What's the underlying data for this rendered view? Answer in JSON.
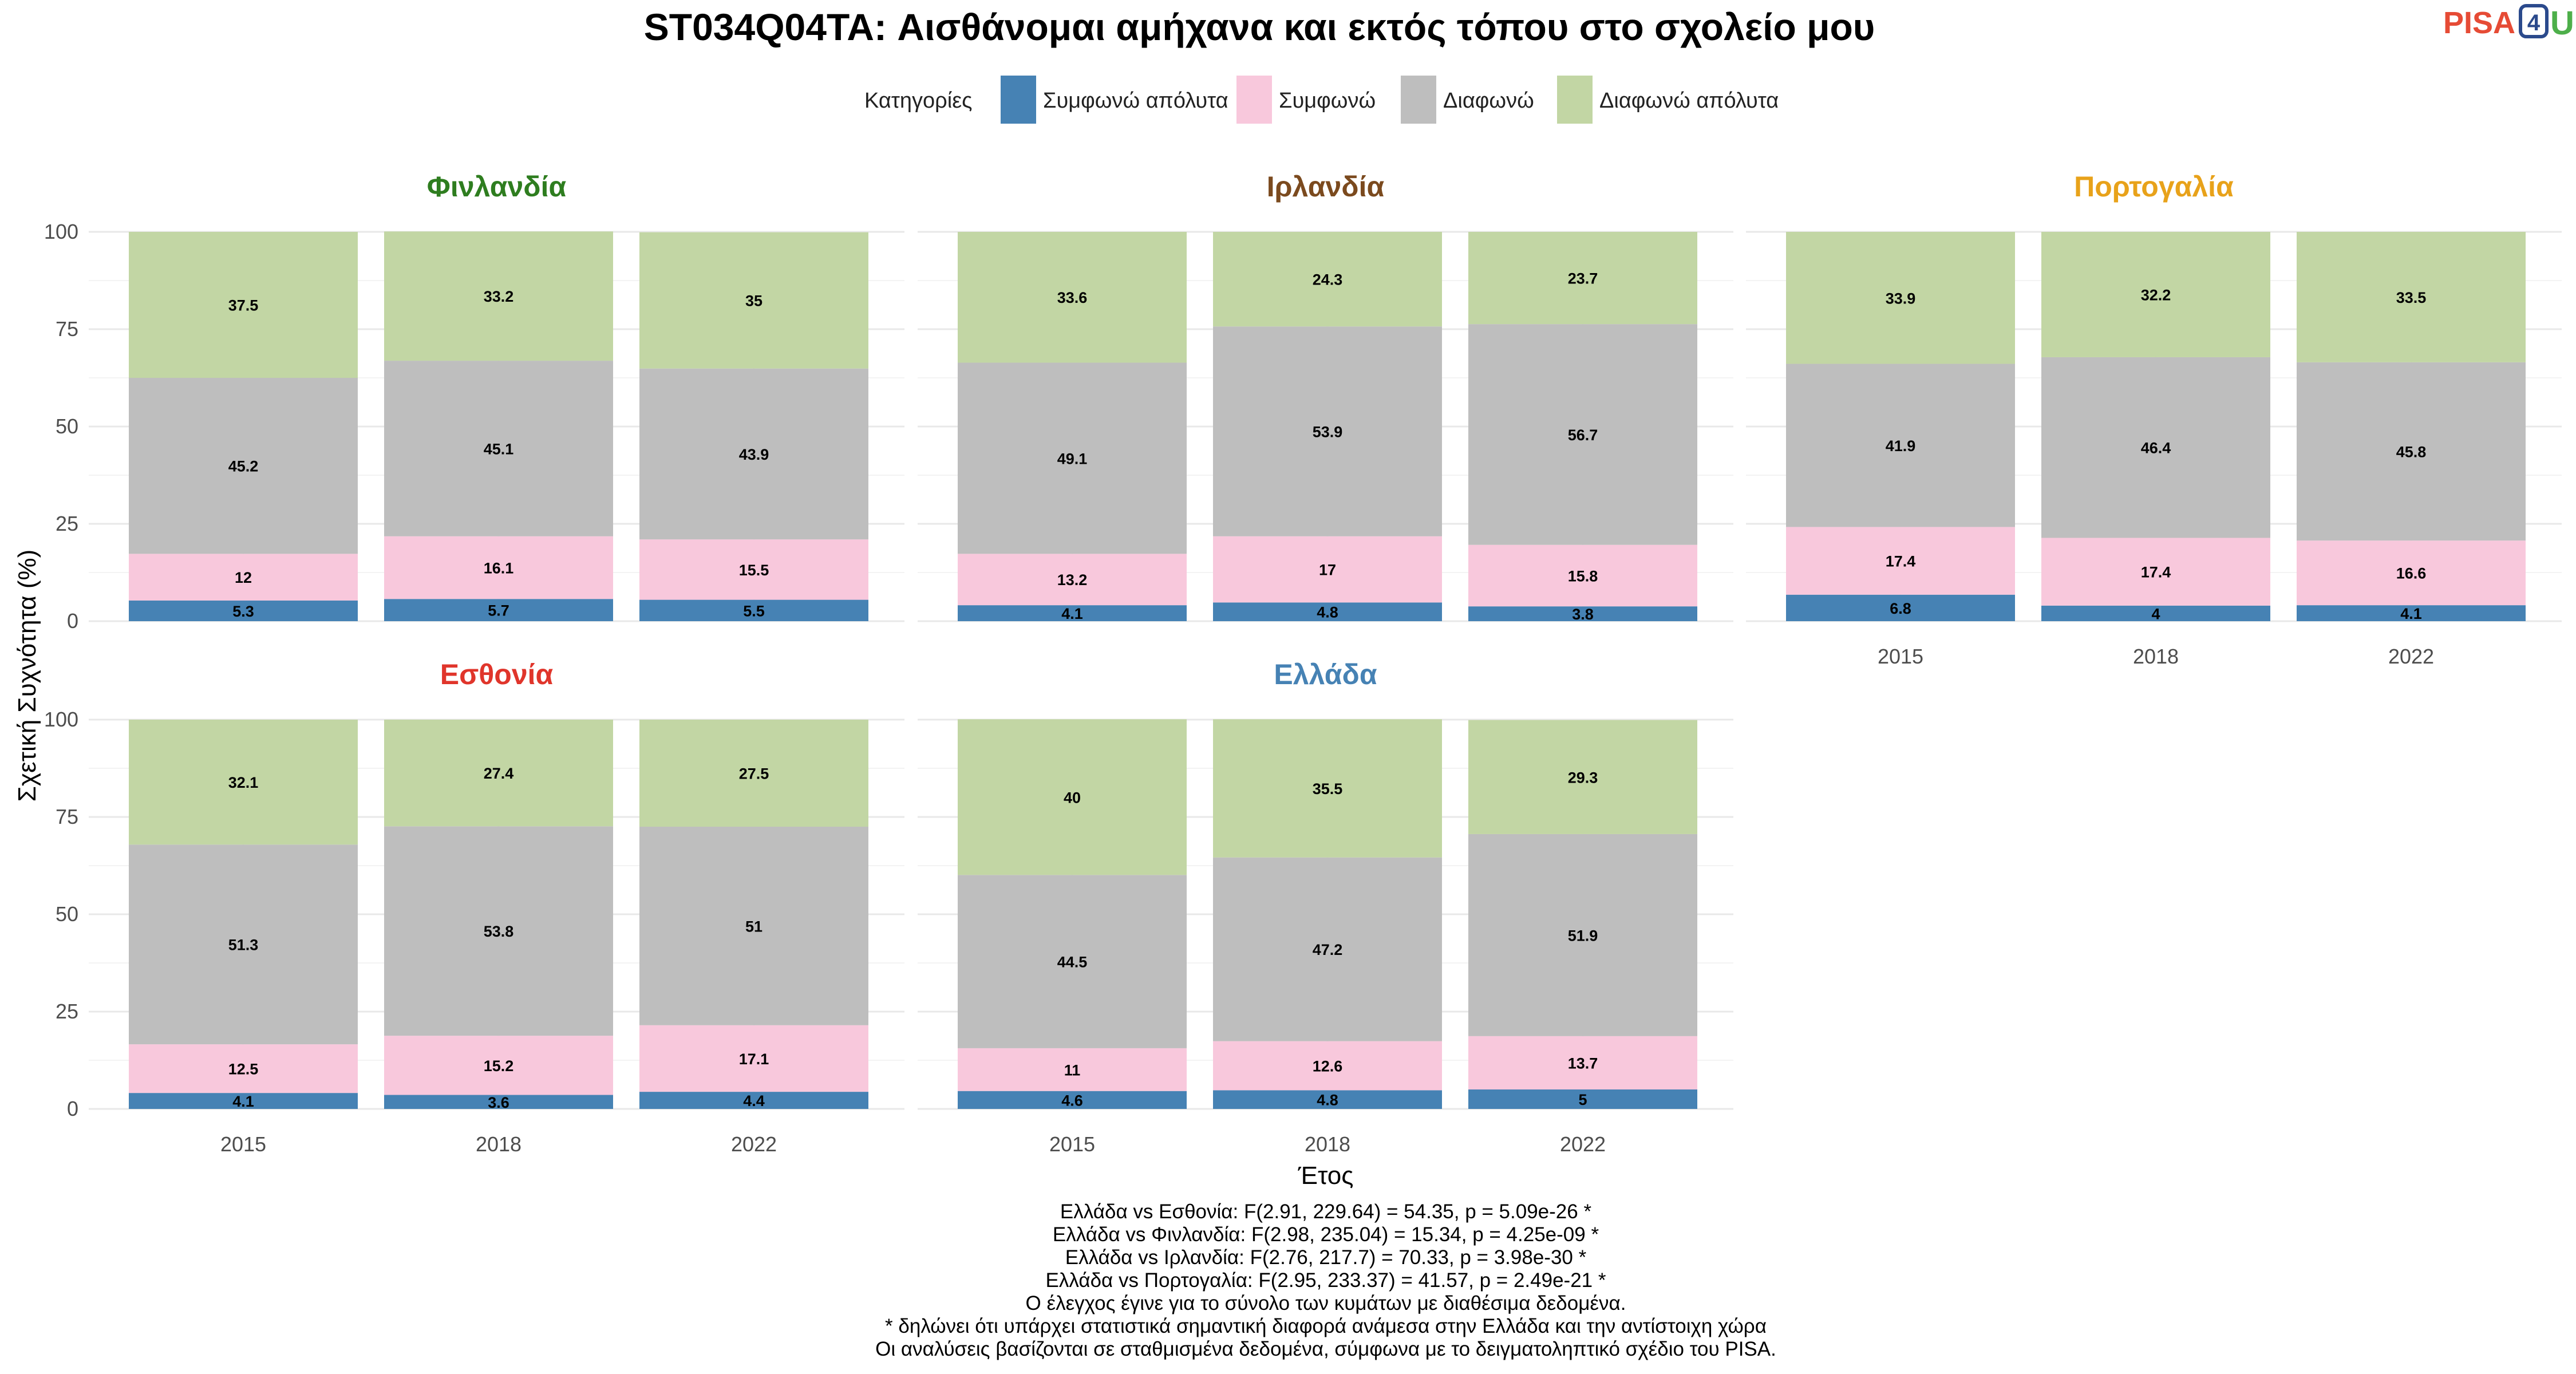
{
  "title": "ST034Q04TA: Αισθάνομαι αμήχανα και εκτός τόπου στο σχολείο μου",
  "logo": {
    "pisa": "PISA",
    "four": "4",
    "u": "U"
  },
  "legend": {
    "title": "Κατηγορίες",
    "items": [
      {
        "label": "Συμφωνώ απόλυτα",
        "color": "#4682b4"
      },
      {
        "label": "Συμφωνώ",
        "color": "#f8c8dc"
      },
      {
        "label": "Διαφωνώ",
        "color": "#bebebe"
      },
      {
        "label": "Διαφωνώ απόλυτα",
        "color": "#c2d6a4"
      }
    ]
  },
  "axes": {
    "ylabel": "Σχετική Συχνότητα (%)",
    "xlabel": "Έτος",
    "yticks": [
      "0",
      "25",
      "50",
      "75",
      "100"
    ]
  },
  "notes": [
    "Ελλάδα vs Εσθονία: F(2.91, 229.64) = 54.35, p = 5.09e-26 *",
    "Ελλάδα vs Φινλανδία: F(2.98, 235.04) = 15.34, p = 4.25e-09 *",
    "Ελλάδα vs Ιρλανδία: F(2.76, 217.7) = 70.33, p = 3.98e-30 *",
    "Ελλάδα vs Πορτογαλία: F(2.95, 233.37) = 41.57, p = 2.49e-21 *",
    "Ο έλεγχος έγινε για το σύνολο των κυμάτων με διαθέσιμα δεδομένα.",
    "* δηλώνει ότι υπάρχει στατιστικά σημαντική διαφορά ανάμεσα στην Ελλάδα και την αντίστοιχη χώρα",
    "Οι αναλύσεις βασίζονται σε σταθμισμένα δεδομένα, σύμφωνα με το δειγματοληπτικό σχέδιο του PISA."
  ],
  "chart_data": {
    "type": "bar",
    "stacked": true,
    "ylim": [
      0,
      100
    ],
    "categories": [
      "2015",
      "2018",
      "2022"
    ],
    "series_names": [
      "Συμφωνώ απόλυτα",
      "Συμφωνώ",
      "Διαφωνώ",
      "Διαφωνώ απόλυτα"
    ],
    "facets": [
      {
        "name": "Φινλανδία",
        "color": "#2e7d1f",
        "values": [
          [
            5.3,
            12,
            45.2,
            37.5
          ],
          [
            5.7,
            16.1,
            45.1,
            33.2
          ],
          [
            5.5,
            15.5,
            43.9,
            35
          ]
        ]
      },
      {
        "name": "Ιρλανδία",
        "color": "#7b4a1e",
        "values": [
          [
            4.1,
            13.2,
            49.1,
            33.6
          ],
          [
            4.8,
            17,
            53.9,
            24.3
          ],
          [
            3.8,
            15.8,
            56.7,
            23.7
          ]
        ]
      },
      {
        "name": "Πορτογαλία",
        "color": "#e8a21a",
        "values": [
          [
            6.8,
            17.4,
            41.9,
            33.9
          ],
          [
            4,
            17.4,
            46.4,
            32.2
          ],
          [
            4.1,
            16.6,
            45.8,
            33.5
          ]
        ]
      },
      {
        "name": "Εσθονία",
        "color": "#e0352b",
        "values": [
          [
            4.1,
            12.5,
            51.3,
            32.1
          ],
          [
            3.6,
            15.2,
            53.8,
            27.4
          ],
          [
            4.4,
            17.1,
            51,
            27.5
          ]
        ]
      },
      {
        "name": "Ελλάδα",
        "color": "#4682b4",
        "values": [
          [
            4.6,
            11,
            44.5,
            40
          ],
          [
            4.8,
            12.6,
            47.2,
            35.5
          ],
          [
            5,
            13.7,
            51.9,
            29.3
          ]
        ]
      }
    ]
  }
}
